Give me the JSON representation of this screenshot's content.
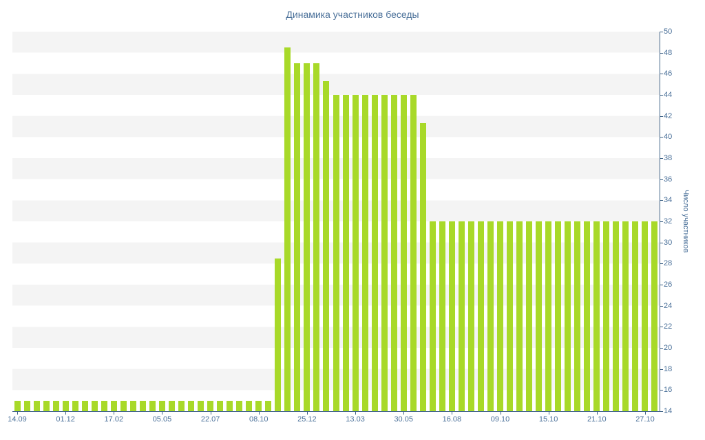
{
  "chart_data": {
    "type": "bar",
    "title": "Динамика участников беседы",
    "ylabel": "Число участников",
    "xlabel": "",
    "ylim": [
      14,
      50
    ],
    "y_tick_step": 2,
    "x_tick_labels": [
      "14.09",
      "01.12",
      "17.02",
      "05.05",
      "22.07",
      "08.10",
      "25.12",
      "13.03",
      "30.05",
      "16.08",
      "09.10",
      "15.10",
      "21.10",
      "27.10"
    ],
    "x_tick_every": 5,
    "values": [
      15,
      15,
      15,
      15,
      15,
      15,
      15,
      15,
      15,
      15,
      15,
      15,
      15,
      15,
      15,
      15,
      15,
      15,
      15,
      15,
      15,
      15,
      15,
      15,
      15,
      15,
      15,
      28.5,
      48.5,
      47,
      47,
      47,
      45.3,
      44,
      44,
      44,
      44,
      44,
      44,
      44,
      44,
      44,
      41.3,
      32,
      32,
      32,
      32,
      32,
      32,
      32,
      32,
      32,
      32,
      32,
      32,
      32,
      32,
      32,
      32,
      32,
      32,
      32,
      32,
      32,
      32,
      32,
      32
    ],
    "bar_color": "#a8d929",
    "label_color": "#4a7099",
    "axis_color": "#3d6185",
    "stripe_color": "#f4f4f4",
    "background_color": "#ffffff",
    "grid": "horizontal-bands",
    "legend_position": "none"
  }
}
